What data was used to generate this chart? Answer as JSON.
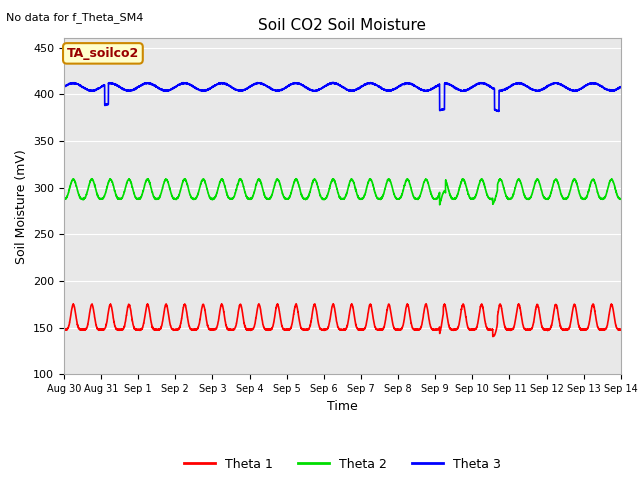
{
  "title": "Soil CO2 Soil Moisture",
  "no_data_text": "No data for f_Theta_SM4",
  "station_label": "TA_soilco2",
  "ylabel": "Soil Moisture (mV)",
  "xlabel": "Time",
  "ylim": [
    100,
    460
  ],
  "yticks": [
    100,
    150,
    200,
    250,
    300,
    350,
    400,
    450
  ],
  "xtick_labels": [
    "Aug 30",
    "Aug 31",
    "Sep 1",
    "Sep 2",
    "Sep 3",
    "Sep 4",
    "Sep 5",
    "Sep 6",
    "Sep 7",
    "Sep 8",
    "Sep 9",
    "Sep 10",
    "Sep 11",
    "Sep 12",
    "Sep 13",
    "Sep 14"
  ],
  "colors": {
    "theta1": "#ff0000",
    "theta2": "#00dd00",
    "theta3": "#0000ff",
    "plot_bg": "#e8e8e8",
    "fig_bg": "#ffffff",
    "grid": "#ffffff"
  },
  "theta1_base": 148,
  "theta1_peak": 175,
  "theta2_base": 288,
  "theta2_peak": 309,
  "theta3_base": 408,
  "theta3_amp": 4
}
